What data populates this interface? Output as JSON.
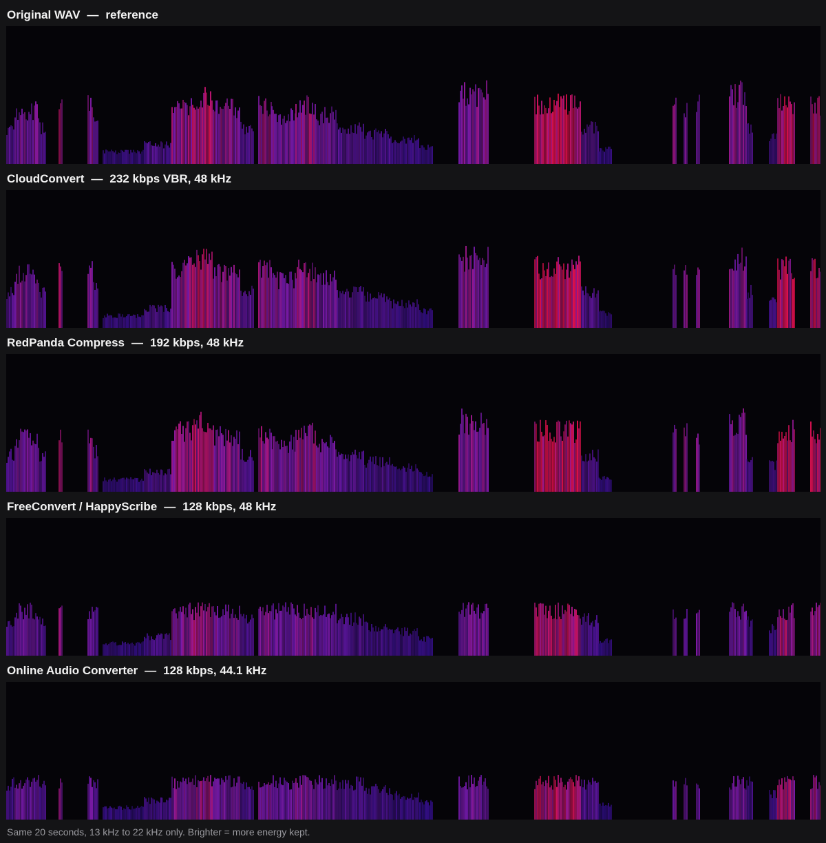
{
  "panels": [
    {
      "name": "Original WAV",
      "detail": "reference",
      "cap": 1.0
    },
    {
      "name": "CloudConvert",
      "detail": "232 kbps VBR, 48 kHz",
      "cap": 0.98
    },
    {
      "name": "RedPanda Compress",
      "detail": "192 kbps, 48 kHz",
      "cap": 0.95
    },
    {
      "name": "FreeConvert / HappyScribe",
      "detail": "128 kbps, 48 kHz",
      "cap": 0.55
    },
    {
      "name": "Online Audio Converter",
      "detail": "128 kbps, 44.1 kHz",
      "cap": 0.45
    }
  ],
  "separator": "—",
  "caption": "Same 20 seconds, 13 kHz to 22 kHz only. Brighter = more energy kept.",
  "colors": {
    "background": "#141416",
    "spectrogram_background": "#050408",
    "low_energy": "#1a0a70",
    "mid_energy": "#7a1aa8",
    "high_energy": "#e0104a"
  }
}
